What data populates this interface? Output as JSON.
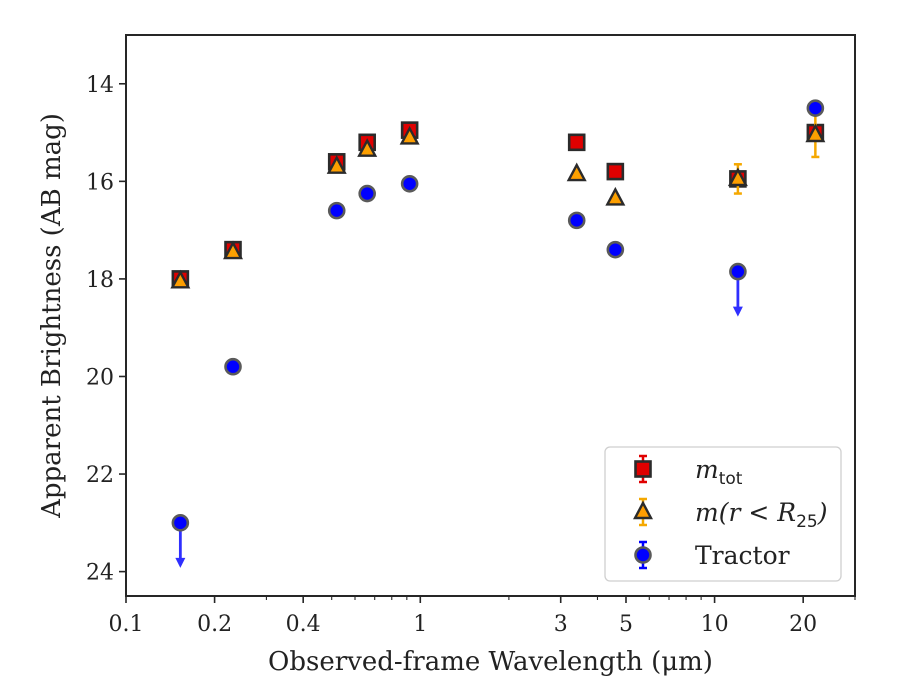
{
  "chart_data": {
    "type": "scatter",
    "xlabel": "Observed-frame Wavelength (μm)",
    "ylabel": "Apparent Brightness (AB mag)",
    "xscale": "log",
    "xlim": [
      0.1,
      30
    ],
    "ylim": [
      24.5,
      13
    ],
    "y_inverted": true,
    "grid": false,
    "legend_position": "lower-right",
    "xticks": [
      {
        "value": 0.1,
        "label": "0.1"
      },
      {
        "value": 0.2,
        "label": "0.2"
      },
      {
        "value": 0.4,
        "label": "0.4"
      },
      {
        "value": 1,
        "label": "1"
      },
      {
        "value": 3,
        "label": "3"
      },
      {
        "value": 5,
        "label": "5"
      },
      {
        "value": 10,
        "label": "10"
      },
      {
        "value": 20,
        "label": "20"
      }
    ],
    "yticks": [
      14,
      16,
      18,
      20,
      22,
      24
    ],
    "series": [
      {
        "name": "m_tot",
        "legend_main": "m",
        "legend_sub": "tot",
        "marker": "square",
        "color": "#e00000",
        "error_color": "#e00000",
        "points": [
          {
            "x": 0.153,
            "y": 18.0
          },
          {
            "x": 0.231,
            "y": 17.4
          },
          {
            "x": 0.52,
            "y": 15.6
          },
          {
            "x": 0.66,
            "y": 15.2
          },
          {
            "x": 0.92,
            "y": 14.95
          },
          {
            "x": 3.4,
            "y": 15.2
          },
          {
            "x": 4.6,
            "y": 15.8
          },
          {
            "x": 12.0,
            "y": 15.95
          },
          {
            "x": 22.0,
            "y": 15.0
          }
        ]
      },
      {
        "name": "m(r < R25)",
        "legend_main": "m(r < R",
        "legend_sub": "25",
        "legend_tail": ")",
        "marker": "triangle",
        "color": "#ff9d00",
        "error_color": "#f5a800",
        "points": [
          {
            "x": 0.153,
            "y": 18.05
          },
          {
            "x": 0.231,
            "y": 17.45
          },
          {
            "x": 0.52,
            "y": 15.7
          },
          {
            "x": 0.66,
            "y": 15.35
          },
          {
            "x": 0.92,
            "y": 15.1
          },
          {
            "x": 3.4,
            "y": 15.85
          },
          {
            "x": 4.6,
            "y": 16.35
          },
          {
            "x": 12.0,
            "y": 15.95,
            "err": 0.3
          },
          {
            "x": 22.0,
            "y": 15.05,
            "err": 0.45
          }
        ]
      },
      {
        "name": "Tractor",
        "legend_main": "Tractor",
        "marker": "circle",
        "color": "#0000ff",
        "error_color": "#0000ff",
        "points": [
          {
            "x": 0.153,
            "y": 23.0,
            "upper_limit": true
          },
          {
            "x": 0.231,
            "y": 19.8
          },
          {
            "x": 0.52,
            "y": 16.6
          },
          {
            "x": 0.66,
            "y": 16.25
          },
          {
            "x": 0.92,
            "y": 16.05
          },
          {
            "x": 3.4,
            "y": 16.8
          },
          {
            "x": 4.6,
            "y": 17.4
          },
          {
            "x": 12.0,
            "y": 17.85,
            "upper_limit": true
          },
          {
            "x": 22.0,
            "y": 14.5
          }
        ]
      }
    ]
  }
}
